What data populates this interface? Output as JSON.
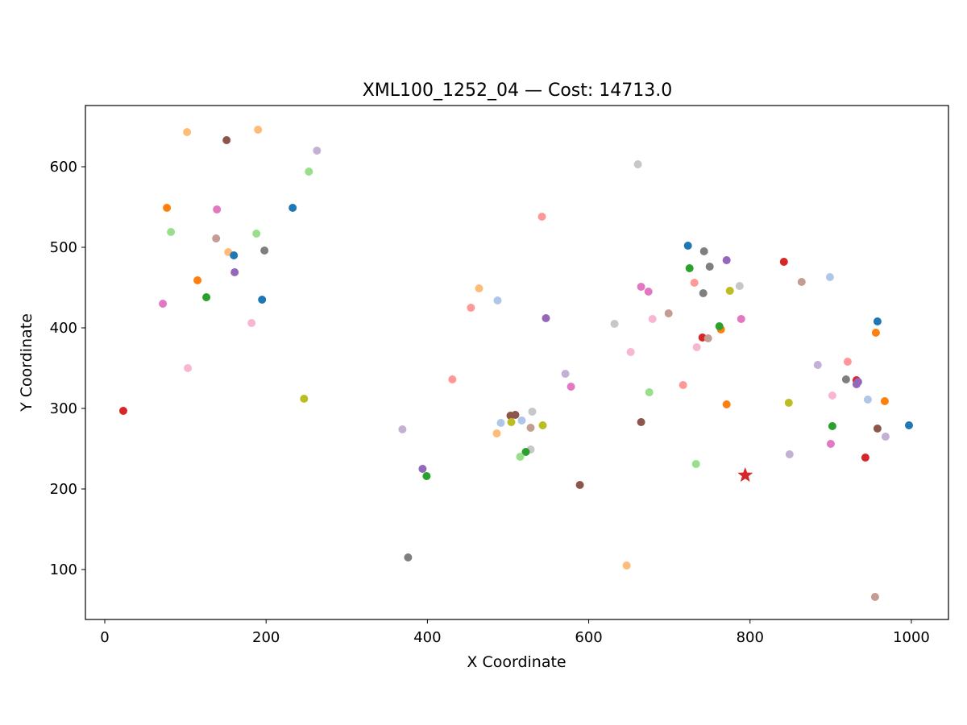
{
  "chart_data": {
    "type": "scatter",
    "title": "XML100_1252_04  —  Cost: 14713.0",
    "xlabel": "X Coordinate",
    "ylabel": "Y Coordinate",
    "xlim": [
      -24,
      1046
    ],
    "ylim": [
      38,
      676
    ],
    "xticks": [
      0,
      200,
      400,
      600,
      800,
      1000
    ],
    "yticks": [
      100,
      200,
      300,
      400,
      500,
      600
    ],
    "grid": false,
    "legend": "none",
    "depot": {
      "x": 794,
      "y": 217,
      "color": "#d62728",
      "marker": "star"
    },
    "points": [
      {
        "x": 102,
        "y": 643,
        "color": "#ffbb78"
      },
      {
        "x": 151,
        "y": 633,
        "color": "#8c564b"
      },
      {
        "x": 190,
        "y": 646,
        "color": "#ffbb78"
      },
      {
        "x": 263,
        "y": 620,
        "color": "#c5b0d5"
      },
      {
        "x": 253,
        "y": 594,
        "color": "#98df8a"
      },
      {
        "x": 77,
        "y": 549,
        "color": "#ff7f0e"
      },
      {
        "x": 233,
        "y": 549,
        "color": "#1f77b4"
      },
      {
        "x": 139,
        "y": 547,
        "color": "#e377c2"
      },
      {
        "x": 82,
        "y": 519,
        "color": "#98df8a"
      },
      {
        "x": 188,
        "y": 517,
        "color": "#98df8a"
      },
      {
        "x": 138,
        "y": 511,
        "color": "#c49c94"
      },
      {
        "x": 198,
        "y": 496,
        "color": "#7f7f7f"
      },
      {
        "x": 153,
        "y": 494,
        "color": "#ffbb78"
      },
      {
        "x": 160,
        "y": 490,
        "color": "#1f77b4"
      },
      {
        "x": 161,
        "y": 469,
        "color": "#9467bd"
      },
      {
        "x": 115,
        "y": 459,
        "color": "#ff7f0e"
      },
      {
        "x": 126,
        "y": 438,
        "color": "#2ca02c"
      },
      {
        "x": 195,
        "y": 435,
        "color": "#1f77b4"
      },
      {
        "x": 72,
        "y": 430,
        "color": "#e377c2"
      },
      {
        "x": 182,
        "y": 406,
        "color": "#f7b6d2"
      },
      {
        "x": 103,
        "y": 350,
        "color": "#f7b6d2"
      },
      {
        "x": 247,
        "y": 312,
        "color": "#bcbd22"
      },
      {
        "x": 23,
        "y": 297,
        "color": "#d62728"
      },
      {
        "x": 661,
        "y": 603,
        "color": "#c7c7c7"
      },
      {
        "x": 542,
        "y": 538,
        "color": "#ff9896"
      },
      {
        "x": 464,
        "y": 449,
        "color": "#ffbb78"
      },
      {
        "x": 487,
        "y": 434,
        "color": "#aec7e8"
      },
      {
        "x": 454,
        "y": 425,
        "color": "#ff9896"
      },
      {
        "x": 547,
        "y": 412,
        "color": "#9467bd"
      },
      {
        "x": 431,
        "y": 336,
        "color": "#ff9896"
      },
      {
        "x": 571,
        "y": 343,
        "color": "#c5b0d5"
      },
      {
        "x": 578,
        "y": 327,
        "color": "#e377c2"
      },
      {
        "x": 369,
        "y": 274,
        "color": "#c5b0d5"
      },
      {
        "x": 503,
        "y": 291,
        "color": "#8c564b"
      },
      {
        "x": 509,
        "y": 292,
        "color": "#8c564b"
      },
      {
        "x": 530,
        "y": 296,
        "color": "#c7c7c7"
      },
      {
        "x": 491,
        "y": 282,
        "color": "#aec7e8"
      },
      {
        "x": 504,
        "y": 283,
        "color": "#bcbd22"
      },
      {
        "x": 517,
        "y": 285,
        "color": "#aec7e8"
      },
      {
        "x": 543,
        "y": 279,
        "color": "#bcbd22"
      },
      {
        "x": 528,
        "y": 276,
        "color": "#c49c94"
      },
      {
        "x": 486,
        "y": 269,
        "color": "#ffbb78"
      },
      {
        "x": 528,
        "y": 249,
        "color": "#c7c7c7"
      },
      {
        "x": 522,
        "y": 246,
        "color": "#2ca02c"
      },
      {
        "x": 515,
        "y": 240,
        "color": "#98df8a"
      },
      {
        "x": 394,
        "y": 225,
        "color": "#9467bd"
      },
      {
        "x": 399,
        "y": 216,
        "color": "#2ca02c"
      },
      {
        "x": 589,
        "y": 205,
        "color": "#8c564b"
      },
      {
        "x": 376,
        "y": 115,
        "color": "#7f7f7f"
      },
      {
        "x": 647,
        "y": 105,
        "color": "#ffbb78"
      },
      {
        "x": 723,
        "y": 502,
        "color": "#1f77b4"
      },
      {
        "x": 743,
        "y": 495,
        "color": "#7f7f7f"
      },
      {
        "x": 771,
        "y": 484,
        "color": "#9467bd"
      },
      {
        "x": 725,
        "y": 474,
        "color": "#2ca02c"
      },
      {
        "x": 750,
        "y": 476,
        "color": "#7f7f7f"
      },
      {
        "x": 842,
        "y": 482,
        "color": "#d62728"
      },
      {
        "x": 864,
        "y": 457,
        "color": "#c49c94"
      },
      {
        "x": 899,
        "y": 463,
        "color": "#aec7e8"
      },
      {
        "x": 731,
        "y": 456,
        "color": "#ff9896"
      },
      {
        "x": 665,
        "y": 451,
        "color": "#e377c2"
      },
      {
        "x": 674,
        "y": 445,
        "color": "#e377c2"
      },
      {
        "x": 742,
        "y": 443,
        "color": "#7f7f7f"
      },
      {
        "x": 775,
        "y": 446,
        "color": "#bcbd22"
      },
      {
        "x": 787,
        "y": 452,
        "color": "#c7c7c7"
      },
      {
        "x": 699,
        "y": 418,
        "color": "#c49c94"
      },
      {
        "x": 632,
        "y": 405,
        "color": "#c7c7c7"
      },
      {
        "x": 679,
        "y": 411,
        "color": "#f7b6d2"
      },
      {
        "x": 789,
        "y": 411,
        "color": "#e377c2"
      },
      {
        "x": 764,
        "y": 398,
        "color": "#ff7f0e"
      },
      {
        "x": 762,
        "y": 402,
        "color": "#2ca02c"
      },
      {
        "x": 741,
        "y": 388,
        "color": "#d62728"
      },
      {
        "x": 748,
        "y": 387,
        "color": "#c49c94"
      },
      {
        "x": 734,
        "y": 376,
        "color": "#f7b6d2"
      },
      {
        "x": 652,
        "y": 370,
        "color": "#f7b6d2"
      },
      {
        "x": 717,
        "y": 329,
        "color": "#ff9896"
      },
      {
        "x": 675,
        "y": 320,
        "color": "#98df8a"
      },
      {
        "x": 771,
        "y": 305,
        "color": "#ff7f0e"
      },
      {
        "x": 665,
        "y": 283,
        "color": "#8c564b"
      },
      {
        "x": 733,
        "y": 231,
        "color": "#98df8a"
      },
      {
        "x": 958,
        "y": 408,
        "color": "#1f77b4"
      },
      {
        "x": 956,
        "y": 394,
        "color": "#ff7f0e"
      },
      {
        "x": 921,
        "y": 358,
        "color": "#ff9896"
      },
      {
        "x": 884,
        "y": 354,
        "color": "#c5b0d5"
      },
      {
        "x": 919,
        "y": 336,
        "color": "#7f7f7f"
      },
      {
        "x": 932,
        "y": 335,
        "color": "#d62728"
      },
      {
        "x": 934,
        "y": 333,
        "color": "#9467bd"
      },
      {
        "x": 932,
        "y": 330,
        "color": "#9467bd"
      },
      {
        "x": 902,
        "y": 316,
        "color": "#f7b6d2"
      },
      {
        "x": 946,
        "y": 311,
        "color": "#aec7e8"
      },
      {
        "x": 848,
        "y": 307,
        "color": "#bcbd22"
      },
      {
        "x": 967,
        "y": 309,
        "color": "#ff7f0e"
      },
      {
        "x": 902,
        "y": 278,
        "color": "#2ca02c"
      },
      {
        "x": 958,
        "y": 275,
        "color": "#8c564b"
      },
      {
        "x": 997,
        "y": 279,
        "color": "#1f77b4"
      },
      {
        "x": 968,
        "y": 265,
        "color": "#c5b0d5"
      },
      {
        "x": 900,
        "y": 256,
        "color": "#e377c2"
      },
      {
        "x": 849,
        "y": 243,
        "color": "#c5b0d5"
      },
      {
        "x": 943,
        "y": 239,
        "color": "#d62728"
      },
      {
        "x": 955,
        "y": 66,
        "color": "#c49c94"
      }
    ]
  }
}
